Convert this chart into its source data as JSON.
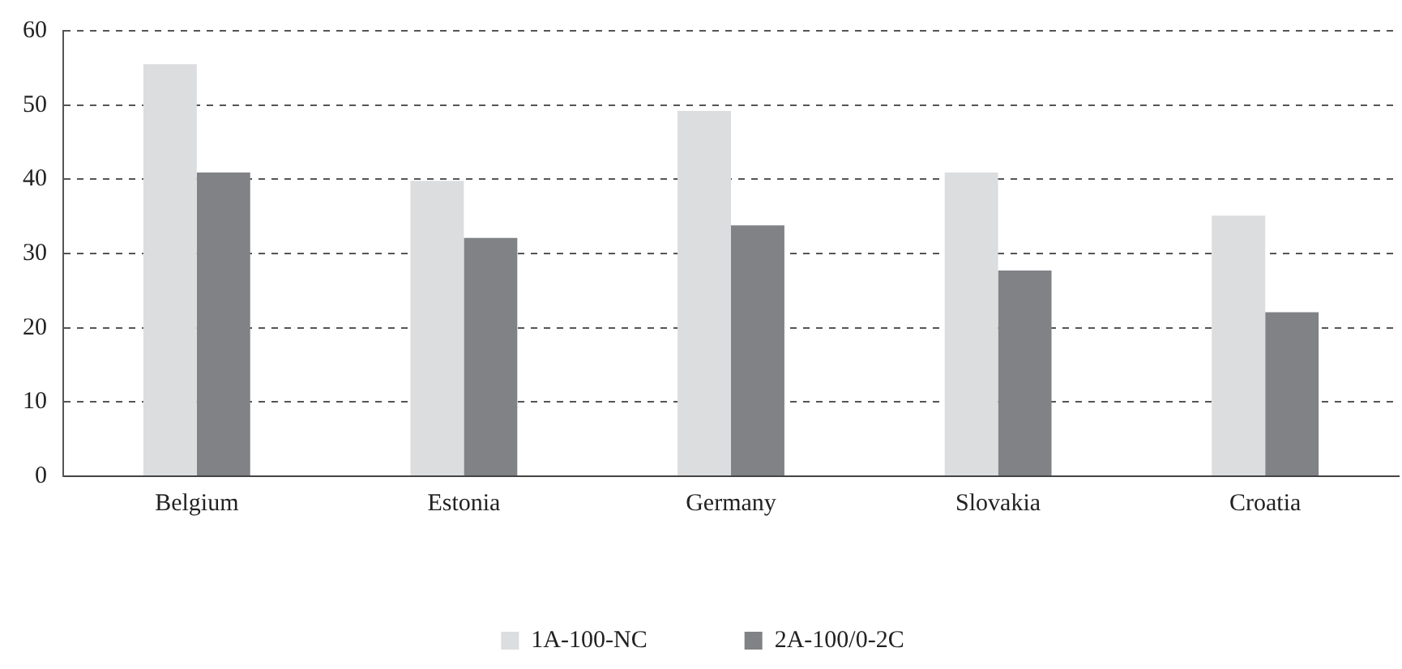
{
  "chart_data": {
    "type": "bar",
    "categories": [
      "Belgium",
      "Estonia",
      "Germany",
      "Slovakia",
      "Croatia"
    ],
    "series": [
      {
        "name": "1A-100-NC",
        "color": "#dcdddf",
        "values": [
          55.5,
          39.8,
          49.2,
          40.9,
          35.1
        ]
      },
      {
        "name": "2A-100/0-2C",
        "color": "#818286",
        "values": [
          40.9,
          32.1,
          33.8,
          27.7,
          22.1
        ]
      }
    ],
    "ylim": [
      0,
      60
    ],
    "yticks": [
      0,
      10,
      20,
      30,
      40,
      50,
      60
    ],
    "grid": "y",
    "legend": "bottom"
  }
}
